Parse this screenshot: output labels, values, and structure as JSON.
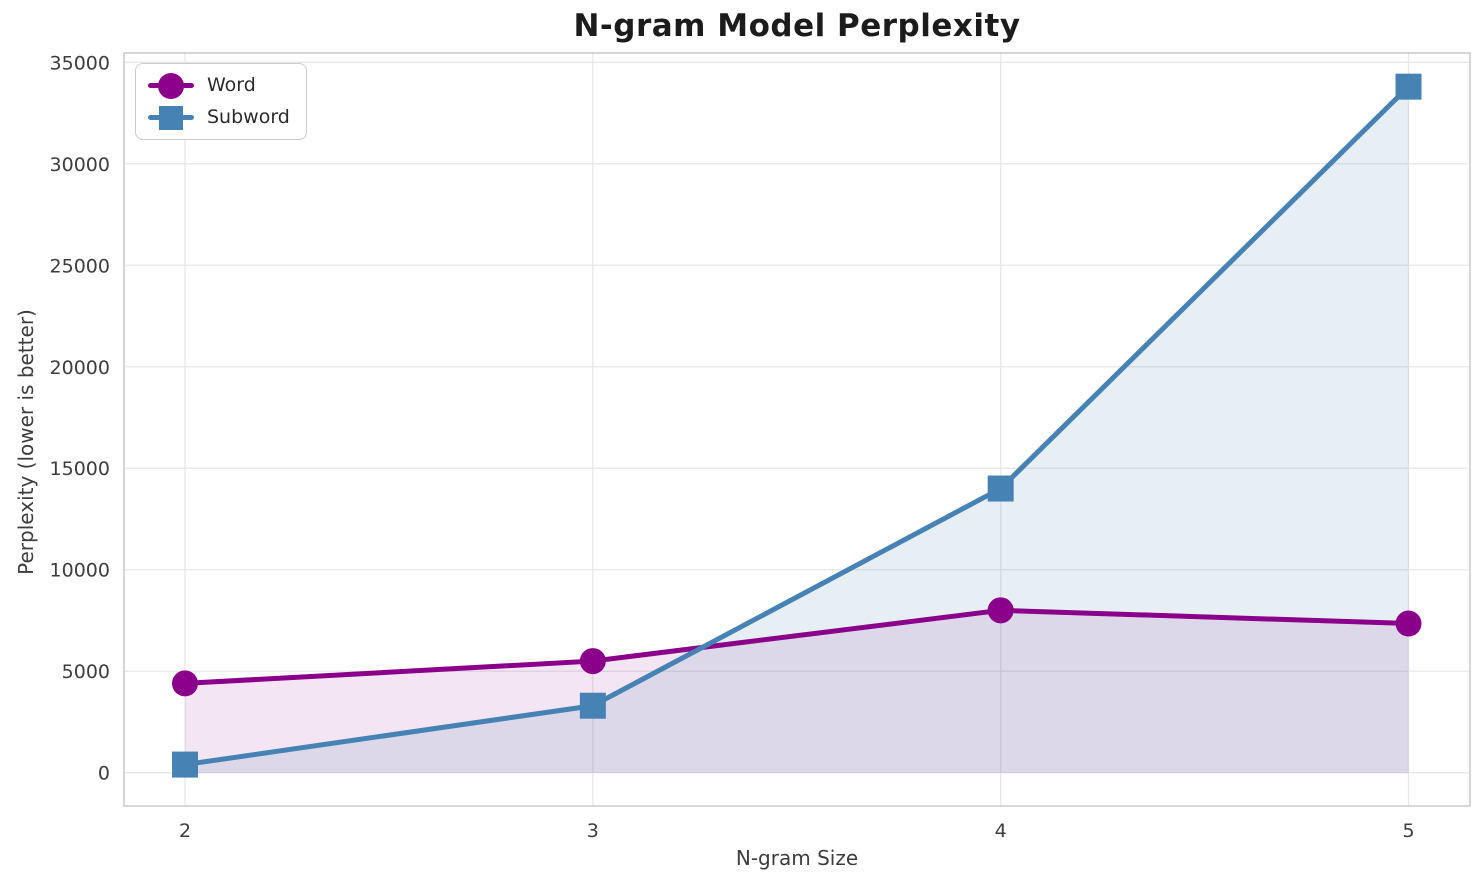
{
  "chart_data": {
    "type": "line",
    "title": "N-gram Model Perplexity",
    "xlabel": "N-gram Size",
    "ylabel": "Perplexity (lower is better)",
    "x": [
      2,
      3,
      4,
      5
    ],
    "xtick_labels": [
      "2",
      "3",
      "4",
      "5"
    ],
    "yticks": [
      0,
      5000,
      10000,
      15000,
      20000,
      25000,
      30000,
      35000
    ],
    "ylim": [
      0,
      35000
    ],
    "grid": true,
    "legend_position": "upper-left",
    "series": [
      {
        "name": "Word",
        "marker": "circle",
        "color": "#8B008B",
        "fill_opacity": 0.1,
        "values": [
          4400,
          5500,
          8000,
          7350
        ]
      },
      {
        "name": "Subword",
        "marker": "square",
        "color": "#4682B4",
        "fill_opacity": 0.13,
        "values": [
          400,
          3300,
          14000,
          33800
        ]
      }
    ],
    "style": {
      "grid_color": "#e7e7e7",
      "spine_color": "#cbcbcb",
      "tick_label_color": "#3d3d3d",
      "title_color": "#1c1c1c",
      "background": "#ffffff"
    }
  }
}
